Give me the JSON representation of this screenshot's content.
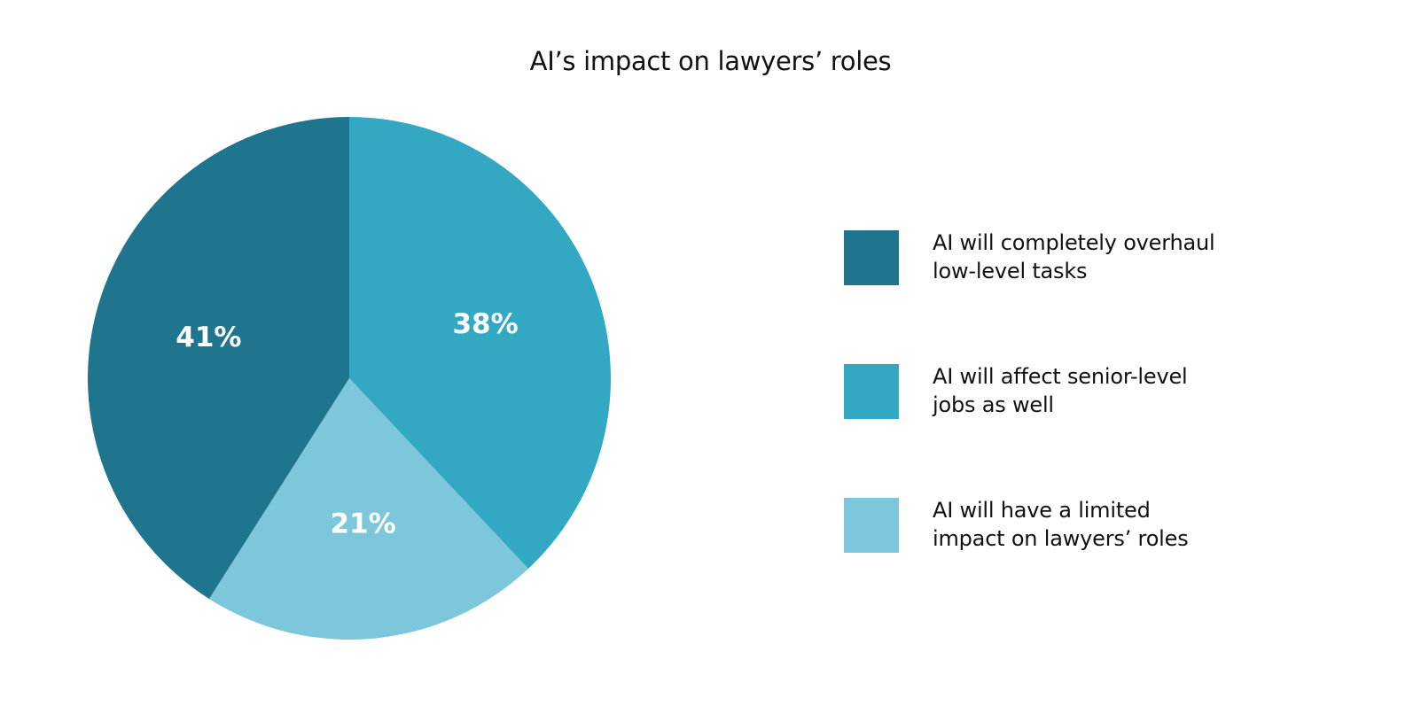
{
  "chart_data": {
    "type": "pie",
    "title": "AI’s impact on lawyers’ roles",
    "slices": [
      {
        "label": "AI will affect senior-level jobs as well",
        "value": 38,
        "value_label": "38%",
        "color": "#33a8c3"
      },
      {
        "label": "AI will have a limited impact on lawyers’ roles",
        "value": 21,
        "value_label": "21%",
        "color": "#7cc7db"
      },
      {
        "label": "AI will completely overhaul low-level tasks",
        "value": 41,
        "value_label": "41%",
        "color": "#20758e"
      }
    ],
    "legend": {
      "placement": "right",
      "items": [
        {
          "label": "AI will completely overhaul low-level tasks",
          "color": "#20758e"
        },
        {
          "label": "AI will affect senior-level jobs as well",
          "color": "#33a8c3"
        },
        {
          "label": "AI will have a limited impact on lawyers’ roles",
          "color": "#7cc7db"
        }
      ]
    }
  }
}
